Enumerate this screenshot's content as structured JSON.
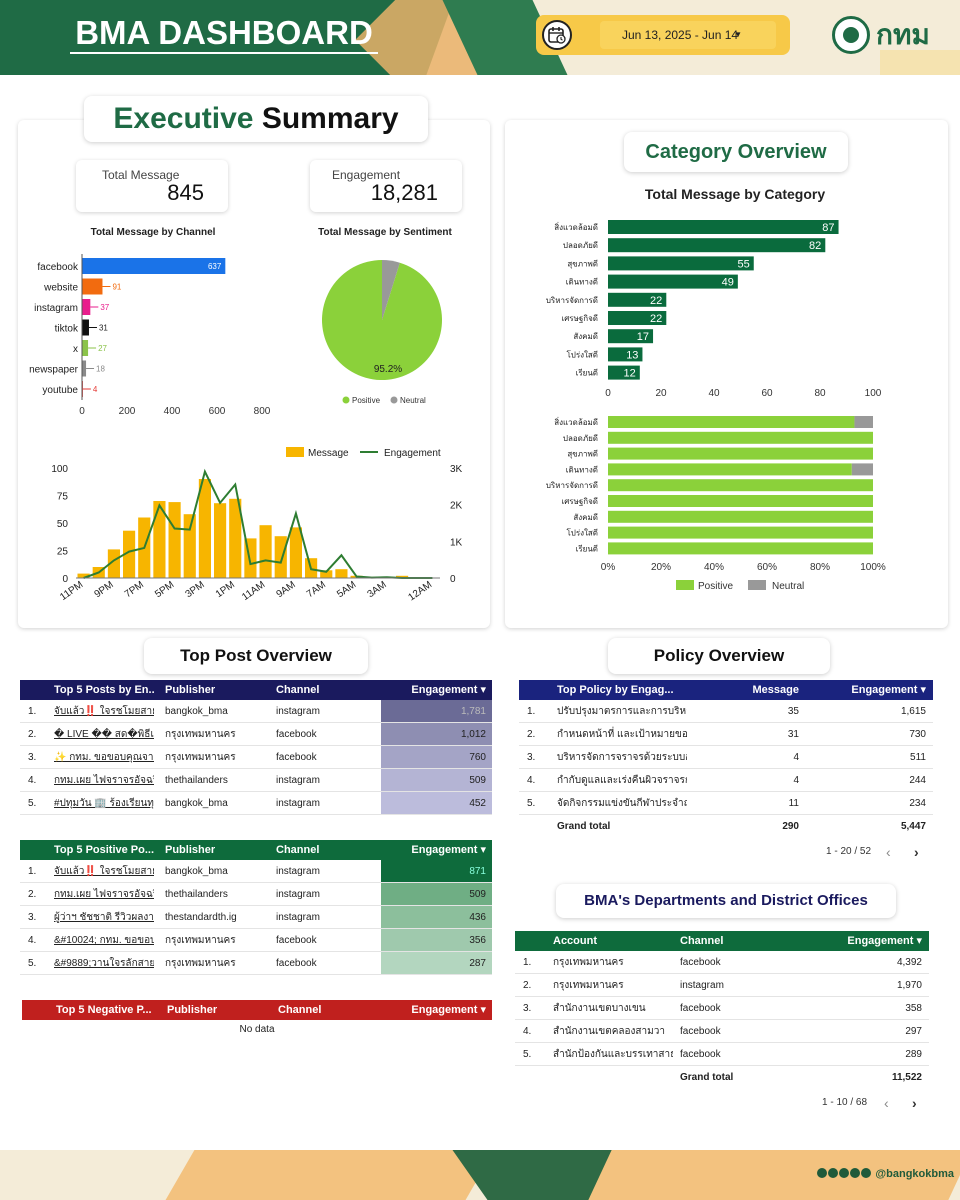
{
  "header": {
    "title": "BMA DASHBOARD",
    "date_range": "Jun 13, 2025 - Jun 14",
    "logo_text": "กทม"
  },
  "colors": {
    "brand_green": "#1f6b45",
    "orange": "#f7c948",
    "navy": "#1a1a5e",
    "red": "#c0201e",
    "bar_yellow": "#f7b500",
    "positive": "#8bd13a",
    "neutral": "#999999"
  },
  "exec": {
    "title_a": "Executive",
    "title_b": "Summary",
    "total_message_label": "Total Message",
    "total_message_value": "845",
    "engagement_label": "Engagement",
    "engagement_value": "18,281",
    "channel_chart_title": "Total Message by Channel",
    "sentiment_chart_title": "Total Message by Sentiment",
    "sentiment_pct_label": "95.2%",
    "legend_message": "Message",
    "legend_engagement": "Engagement"
  },
  "category": {
    "title": "Category Overview",
    "chart_title": "Total Message by Category"
  },
  "chart_data": [
    {
      "type": "bar",
      "orientation": "horizontal",
      "title": "Total Message by Channel",
      "categories": [
        "facebook",
        "website",
        "instagram",
        "tiktok",
        "x",
        "newspaper",
        "youtube"
      ],
      "values": [
        637,
        91,
        37,
        31,
        27,
        18,
        4
      ],
      "colors": [
        "#1a73e8",
        "#f26b0f",
        "#e91e8c",
        "#111111",
        "#8bc34a",
        "#8a8a8a",
        "#e53935"
      ],
      "xlim": [
        0,
        800
      ],
      "xticks": [
        "0",
        "200",
        "400",
        "600",
        "800"
      ]
    },
    {
      "type": "pie",
      "title": "Total Message by Sentiment",
      "labels": [
        "Positive",
        "Neutral"
      ],
      "values": [
        95.2,
        4.8
      ],
      "colors": [
        "#8bd13a",
        "#999999"
      ]
    },
    {
      "type": "bar",
      "subtype": "bar+line",
      "categories": [
        "11PM",
        "10PM",
        "9PM",
        "8PM",
        "7PM",
        "6PM",
        "5PM",
        "4PM",
        "3PM",
        "2PM",
        "1PM",
        "12PM",
        "11AM",
        "10AM",
        "9AM",
        "8AM",
        "7AM",
        "6AM",
        "5AM",
        "4AM",
        "3AM",
        "2AM",
        "1AM",
        "12AM"
      ],
      "xticks": [
        "11PM",
        "9PM",
        "7PM",
        "5PM",
        "3PM",
        "1PM",
        "11AM",
        "9AM",
        "7AM",
        "5AM",
        "3AM",
        "12AM"
      ],
      "series": [
        {
          "name": "Message",
          "type": "bar",
          "values": [
            4,
            10,
            26,
            43,
            55,
            70,
            69,
            58,
            90,
            68,
            72,
            36,
            48,
            38,
            46,
            18,
            7,
            8,
            2,
            1,
            1,
            2,
            0,
            0
          ]
        },
        {
          "name": "Engagement",
          "type": "line",
          "values": [
            0,
            150,
            480,
            720,
            820,
            1980,
            1350,
            1320,
            2900,
            2050,
            2550,
            380,
            480,
            420,
            1760,
            240,
            170,
            620,
            40,
            10,
            20,
            0,
            0,
            0
          ]
        }
      ],
      "ylim_left": [
        0,
        100
      ],
      "yticks_left": [
        "0",
        "25",
        "50",
        "75",
        "100"
      ],
      "ylim_right": [
        0,
        3000
      ],
      "yticks_right": [
        "0",
        "1K",
        "2K",
        "3K"
      ]
    },
    {
      "type": "bar",
      "orientation": "horizontal",
      "title": "Total Message by Category",
      "categories": [
        "สิ่งแวดล้อมดี",
        "ปลอดภัยดี",
        "สุขภาพดี",
        "เดินทางดี",
        "บริหารจัดการดี",
        "เศรษฐกิจดี",
        "สังคมดี",
        "โปร่งใสดี",
        "เรียนดี"
      ],
      "values": [
        87,
        82,
        55,
        49,
        22,
        22,
        17,
        13,
        12
      ],
      "xlim": [
        0,
        100
      ],
      "xticks": [
        "0",
        "20",
        "40",
        "60",
        "80",
        "100"
      ]
    },
    {
      "type": "bar",
      "orientation": "horizontal",
      "stacked": "percent",
      "categories": [
        "สิ่งแวดล้อมดี",
        "ปลอดภัยดี",
        "สุขภาพดี",
        "เดินทางดี",
        "บริหารจัดการดี",
        "เศรษฐกิจดี",
        "สังคมดี",
        "โปร่งใสดี",
        "เรียนดี"
      ],
      "series": [
        {
          "name": "Positive",
          "values": [
            93,
            100,
            100,
            92,
            100,
            100,
            100,
            100,
            100
          ]
        },
        {
          "name": "Neutral",
          "values": [
            7,
            0,
            0,
            8,
            0,
            0,
            0,
            0,
            0
          ]
        }
      ],
      "xticks": [
        "0%",
        "20%",
        "40%",
        "60%",
        "80%",
        "100%"
      ]
    }
  ],
  "top_post": {
    "title": "Top Post Overview",
    "headers": [
      "Top 5 Posts by En...",
      "Publisher",
      "Channel",
      "Engagement ▾"
    ],
    "rows": [
      {
        "n": "1.",
        "post": "จับแล้ว‼️ ใจรชโมยสายไ...",
        "pub": "bangkok_bma",
        "ch": "instagram",
        "eng": "1,781"
      },
      {
        "n": "2.",
        "post": "� LIVE �� สด�พิธีแ...",
        "pub": "กรุงเทพมหานคร",
        "ch": "facebook",
        "eng": "1,012"
      },
      {
        "n": "3.",
        "post": "✨ กทม. ขอขอบคุณจากใ...",
        "pub": "กรุงเทพมหานคร",
        "ch": "facebook",
        "eng": "760"
      },
      {
        "n": "4.",
        "post": "กทม.เผย ไฟจราจรอัจฉริย...",
        "pub": "thethailanders",
        "ch": "instagram",
        "eng": "509"
      },
      {
        "n": "5.",
        "post": "#ปทุมวัน 🏢 ร้องเรียนทุก...",
        "pub": "bangkok_bma",
        "ch": "instagram",
        "eng": "452"
      }
    ],
    "positive_headers": [
      "Top 5 Positive Po...",
      "Publisher",
      "Channel",
      "Engagement ▾"
    ],
    "positive_rows": [
      {
        "n": "1.",
        "post": "จับแล้ว‼️ ใจรชโมยสายไ...",
        "pub": "bangkok_bma",
        "ch": "instagram",
        "eng": "871"
      },
      {
        "n": "2.",
        "post": "กทม.เผย ไฟจราจรอัจฉริย...",
        "pub": "thethailanders",
        "ch": "instagram",
        "eng": "509"
      },
      {
        "n": "3.",
        "post": "ผู้ว่าฯ ชัชชาติ รีวิวผลงานที่...",
        "pub": "thestandardth.ig",
        "ch": "instagram",
        "eng": "436"
      },
      {
        "n": "4.",
        "post": "&#10024; กทม. ขอขอบ...",
        "pub": "กรุงเทพมหานคร",
        "ch": "facebook",
        "eng": "356"
      },
      {
        "n": "5.",
        "post": "&#9889;วานใจรลักสายไ...",
        "pub": "กรุงเทพมหานคร",
        "ch": "facebook",
        "eng": "287"
      }
    ],
    "negative_headers": [
      "Top 5 Negative P...",
      "Publisher",
      "Channel",
      "Engagement ▾"
    ],
    "no_data": "No data"
  },
  "policy": {
    "title": "Policy Overview",
    "headers": [
      "Top Policy by Engag...",
      "Message",
      "Engagement ▾"
    ],
    "rows": [
      {
        "n": "1.",
        "name": "ปรับปรุงมาตรการและการบริหา...",
        "msg": "35",
        "eng": "1,615"
      },
      {
        "n": "2.",
        "name": "กำหนดหน้าที่ และเป้าหมายของ...",
        "msg": "31",
        "eng": "730"
      },
      {
        "n": "3.",
        "name": "บริหารจัดการจราจรด้วยระบบอั...",
        "msg": "4",
        "eng": "511"
      },
      {
        "n": "4.",
        "name": "กำกับดูแลและเร่งคืนผิวจราจรก...",
        "msg": "4",
        "eng": "244"
      },
      {
        "n": "5.",
        "name": "จัดกิจกรรมแข่งขันกีฬาประจำฤ...",
        "msg": "11",
        "eng": "234"
      }
    ],
    "total_label": "Grand total",
    "total_msg": "290",
    "total_eng": "5,447",
    "pager": "1 - 20 / 52"
  },
  "dept": {
    "title": "BMA's Departments and District Offices",
    "headers": [
      "Account",
      "Channel",
      "Engagement ▾"
    ],
    "rows": [
      {
        "n": "1.",
        "acc": "กรุงเทพมหานคร",
        "ch": "facebook",
        "eng": "4,392"
      },
      {
        "n": "2.",
        "acc": "กรุงเทพมหานคร",
        "ch": "instagram",
        "eng": "1,970"
      },
      {
        "n": "3.",
        "acc": "สำนักงานเขตบางเขน",
        "ch": "facebook",
        "eng": "358"
      },
      {
        "n": "4.",
        "acc": "สำนักงานเขตคลองสามวา",
        "ch": "facebook",
        "eng": "297"
      },
      {
        "n": "5.",
        "acc": "สำนักป้องกันและบรรเทาสาธาร...",
        "ch": "facebook",
        "eng": "289"
      }
    ],
    "total_label": "Grand total",
    "total_eng": "11,522",
    "pager": "1 - 10 / 68"
  },
  "footer": {
    "handle": "@bangkokbma"
  }
}
